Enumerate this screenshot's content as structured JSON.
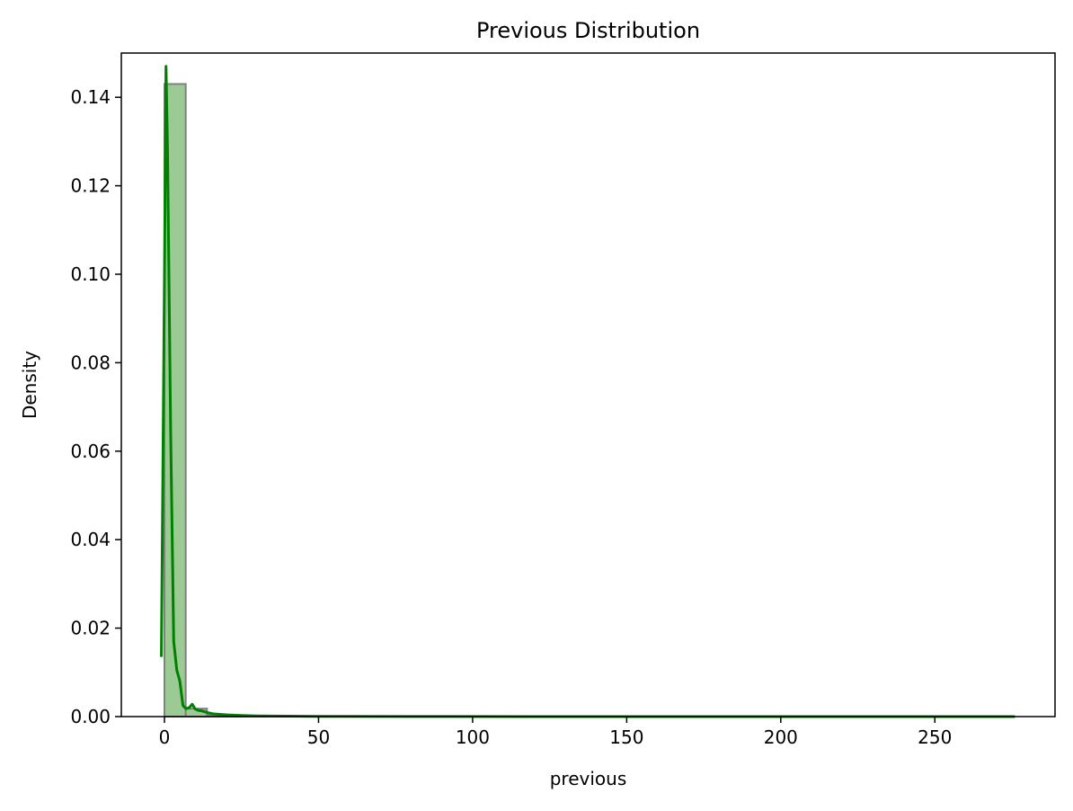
{
  "chart_data": {
    "type": "bar",
    "title": "Previous Distribution",
    "xlabel": "previous",
    "ylabel": "Density",
    "xlim": [
      -14,
      289
    ],
    "ylim": [
      0,
      0.15
    ],
    "x_ticks": [
      0,
      50,
      100,
      150,
      200,
      250
    ],
    "x_tick_labels": [
      "0",
      "50",
      "100",
      "150",
      "200",
      "250"
    ],
    "y_ticks": [
      0.0,
      0.02,
      0.04,
      0.06,
      0.08,
      0.1,
      0.12,
      0.14
    ],
    "y_tick_labels": [
      "0.00",
      "0.02",
      "0.04",
      "0.06",
      "0.08",
      "0.10",
      "0.12",
      "0.14"
    ],
    "grid": false,
    "histogram": {
      "bin_edges": [
        0,
        6.9,
        13.8,
        20.7,
        27.6,
        34.5,
        41.4,
        48.3,
        55.2,
        62.1,
        69.0,
        75.9,
        82.8,
        89.7,
        96.6,
        103.5,
        110.4,
        117.3,
        124.2,
        131.1,
        138.0,
        144.9,
        151.8,
        158.7,
        165.6,
        172.5,
        179.4,
        186.3,
        193.2,
        200.1,
        207.0,
        213.9,
        220.8,
        227.7,
        234.6,
        241.5,
        248.4,
        255.3,
        262.2,
        269.1,
        276.0
      ],
      "values": [
        0.143,
        0.0018,
        0.0004,
        0.0002,
        0.0001,
        5e-05,
        3e-05,
        2e-05,
        2e-05,
        1e-05,
        1e-05,
        1e-05,
        1e-05,
        0,
        0,
        0,
        0,
        0,
        0,
        0,
        0,
        0,
        0,
        0,
        0,
        0,
        0,
        0,
        0,
        0,
        0,
        0,
        0,
        0,
        0,
        0,
        0,
        0,
        0,
        0
      ],
      "fill_color": "#9bca95",
      "edge_color": "#808080"
    },
    "kde": {
      "color": "#008000",
      "x": [
        -1.0,
        0.0,
        0.5,
        1.0,
        2.0,
        3.0,
        4.0,
        5.0,
        6.0,
        7.0,
        8.0,
        9.0,
        10.0,
        11.0,
        12.0,
        14.0,
        16.0,
        20.0,
        25.0,
        30.0,
        40.0,
        50.0,
        80.0,
        120.0,
        160.0,
        200.0,
        240.0,
        276.0
      ],
      "y": [
        0.0135,
        0.1,
        0.147,
        0.128,
        0.065,
        0.017,
        0.0105,
        0.008,
        0.0025,
        0.0018,
        0.002,
        0.0028,
        0.0017,
        0.0014,
        0.0013,
        0.0009,
        0.0006,
        0.0004,
        0.00025,
        0.00015,
        0.0001,
        5e-05,
        2e-05,
        1e-05,
        1e-05,
        1e-05,
        1e-05,
        0.0
      ]
    }
  }
}
